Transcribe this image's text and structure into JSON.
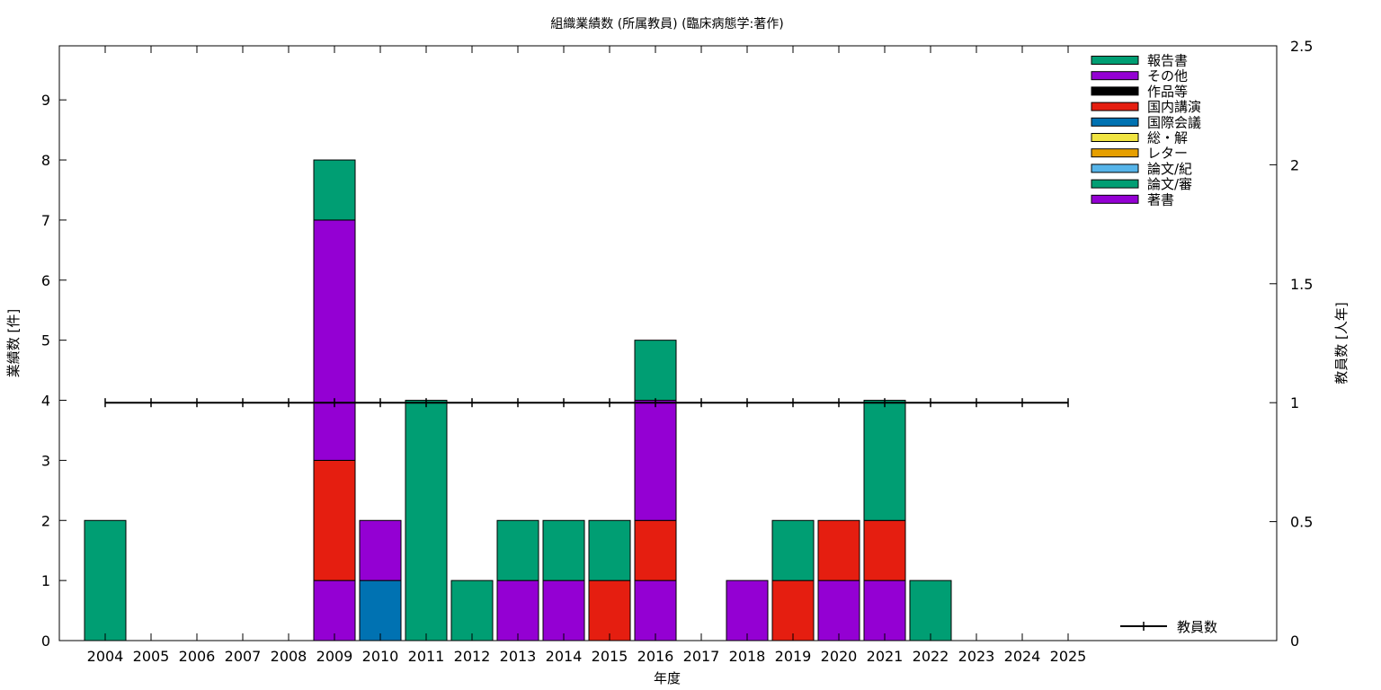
{
  "chart_data": {
    "type": "bar",
    "title": "組織業績数 (所属教員) (臨床病態学:著作)",
    "xlabel": "年度",
    "ylabel": "業績数 [件]",
    "y2label": "教員数 [人年]",
    "ylim": [
      0,
      9.9
    ],
    "y_ticks": [
      0,
      1,
      2,
      3,
      4,
      5,
      6,
      7,
      8,
      9
    ],
    "y2lim": [
      0,
      2.5
    ],
    "y2_ticks": [
      "0",
      "0.5",
      "1",
      "1.5",
      "2",
      "2.5"
    ],
    "legend_position": "top-right",
    "categories": [
      "2004",
      "2005",
      "2006",
      "2007",
      "2008",
      "2009",
      "2010",
      "2011",
      "2012",
      "2013",
      "2014",
      "2015",
      "2016",
      "2017",
      "2018",
      "2019",
      "2020",
      "2021",
      "2022",
      "2023",
      "2024",
      "2025"
    ],
    "series": [
      {
        "name": "著書",
        "color": "#9400d3",
        "values": [
          0,
          0,
          0,
          0,
          0,
          1,
          0,
          0,
          0,
          1,
          1,
          0,
          1,
          0,
          1,
          0,
          1,
          1,
          0,
          0,
          0,
          0
        ]
      },
      {
        "name": "論文/審",
        "color": "#009e73",
        "values": [
          0,
          0,
          0,
          0,
          0,
          0,
          0,
          0,
          0,
          0,
          0,
          0,
          0,
          0,
          0,
          0,
          0,
          0,
          0,
          0,
          0,
          0
        ]
      },
      {
        "name": "論文/紀",
        "color": "#56b4e9",
        "values": [
          0,
          0,
          0,
          0,
          0,
          0,
          0,
          0,
          0,
          0,
          0,
          0,
          0,
          0,
          0,
          0,
          0,
          0,
          0,
          0,
          0,
          0
        ]
      },
      {
        "name": "レター",
        "color": "#e69f00",
        "values": [
          0,
          0,
          0,
          0,
          0,
          0,
          0,
          0,
          0,
          0,
          0,
          0,
          0,
          0,
          0,
          0,
          0,
          0,
          0,
          0,
          0,
          0
        ]
      },
      {
        "name": "総・解",
        "color": "#f0e442",
        "values": [
          0,
          0,
          0,
          0,
          0,
          0,
          0,
          0,
          0,
          0,
          0,
          0,
          0,
          0,
          0,
          0,
          0,
          0,
          0,
          0,
          0,
          0
        ]
      },
      {
        "name": "国際会議",
        "color": "#0072b2",
        "values": [
          0,
          0,
          0,
          0,
          0,
          0,
          1,
          0,
          0,
          0,
          0,
          0,
          0,
          0,
          0,
          0,
          0,
          0,
          0,
          0,
          0,
          0
        ]
      },
      {
        "name": "国内講演",
        "color": "#e51e10",
        "values": [
          0,
          0,
          0,
          0,
          0,
          2,
          0,
          0,
          0,
          0,
          0,
          1,
          1,
          0,
          0,
          1,
          1,
          1,
          0,
          0,
          0,
          0
        ]
      },
      {
        "name": "作品等",
        "color": "#000000",
        "values": [
          0,
          0,
          0,
          0,
          0,
          0,
          0,
          0,
          0,
          0,
          0,
          0,
          0,
          0,
          0,
          0,
          0,
          0,
          0,
          0,
          0,
          0
        ]
      },
      {
        "name": "その他",
        "color": "#9400d3",
        "values": [
          0,
          0,
          0,
          0,
          0,
          4,
          1,
          0,
          0,
          0,
          0,
          0,
          2,
          0,
          0,
          0,
          0,
          0,
          0,
          0,
          0,
          0
        ]
      },
      {
        "name": "報告書",
        "color": "#009e73",
        "values": [
          2,
          0,
          0,
          0,
          0,
          1,
          0,
          4,
          1,
          1,
          1,
          1,
          1,
          0,
          0,
          1,
          0,
          2,
          1,
          0,
          0,
          0
        ]
      }
    ],
    "legend_order": [
      "報告書",
      "その他",
      "作品等",
      "国内講演",
      "国際会議",
      "総・解",
      "レター",
      "論文/紀",
      "論文/審",
      "著書"
    ],
    "line_series": {
      "name": "教員数",
      "color": "#000000",
      "axis": "y2",
      "values": [
        1,
        1,
        1,
        1,
        1,
        1,
        1,
        1,
        1,
        1,
        1,
        1,
        1,
        1,
        1,
        1,
        1,
        1,
        1,
        1,
        1,
        1
      ]
    }
  }
}
